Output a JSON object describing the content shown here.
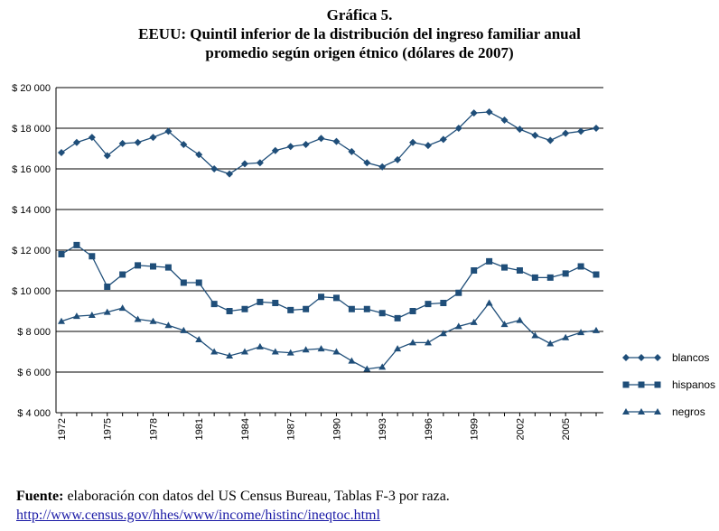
{
  "title_lines": [
    "Gráfica 5.",
    "EEUU: Quintil inferior de la distribución del ingreso familiar anual",
    "promedio según origen étnico (dólares de 2007)"
  ],
  "source": {
    "label": "Fuente:",
    "text": "elaboración con datos del US Census Bureau, Tablas F-3 por raza.",
    "url": "http://www.census.gov/hhes/www/income/histinc/ineqtoc.html"
  },
  "colors": {
    "series": "#1f4e79",
    "grid": "#000000"
  },
  "chart_data": {
    "type": "line",
    "title": "EEUU: Quintil inferior de la distribución del ingreso familiar anual promedio según origen étnico (dólares de 2007)",
    "xlabel": "",
    "ylabel": "",
    "x": [
      1972,
      1973,
      1974,
      1975,
      1976,
      1977,
      1978,
      1979,
      1980,
      1981,
      1982,
      1983,
      1984,
      1985,
      1986,
      1987,
      1988,
      1989,
      1990,
      1991,
      1992,
      1993,
      1994,
      1995,
      1996,
      1997,
      1998,
      1999,
      2000,
      2001,
      2002,
      2003,
      2004,
      2005,
      2006,
      2007
    ],
    "x_tick_labels": [
      "1972",
      "1975",
      "1978",
      "1981",
      "1984",
      "1987",
      "1990",
      "1993",
      "1996",
      "1999",
      "2002",
      "2005"
    ],
    "y_tick_labels": [
      "$ 4 000",
      "$ 6 000",
      "$ 8 000",
      "$ 10 000",
      "$ 12 000",
      "$ 14 000",
      "$ 16 000",
      "$ 18 000",
      "$ 20 000"
    ],
    "y_ticks": [
      4000,
      6000,
      8000,
      10000,
      12000,
      14000,
      16000,
      18000,
      20000
    ],
    "ylim": [
      4000,
      20000
    ],
    "grid": true,
    "legend_position": "right",
    "series": [
      {
        "name": "blancos",
        "marker": "diamond",
        "values": [
          16800,
          17300,
          17550,
          16650,
          17250,
          17300,
          17550,
          17850,
          17200,
          16700,
          16000,
          15750,
          16250,
          16300,
          16900,
          17100,
          17200,
          17500,
          17350,
          16850,
          16300,
          16100,
          16450,
          17300,
          17150,
          17450,
          18000,
          18750,
          18800,
          18400,
          17950,
          17650,
          17400,
          17750,
          17850,
          18000
        ]
      },
      {
        "name": "hispanos",
        "marker": "square",
        "values": [
          11800,
          12250,
          11700,
          10200,
          10800,
          11250,
          11200,
          11150,
          10400,
          10400,
          9350,
          9000,
          9100,
          9450,
          9400,
          9050,
          9100,
          9700,
          9650,
          9100,
          9100,
          8900,
          8650,
          9000,
          9350,
          9400,
          9900,
          11000,
          11450,
          11150,
          11000,
          10650,
          10650,
          10850,
          11200,
          10800
        ]
      },
      {
        "name": "negros",
        "marker": "triangle",
        "values": [
          8500,
          8750,
          8800,
          8950,
          9150,
          8600,
          8500,
          8300,
          8050,
          7600,
          7000,
          6800,
          7000,
          7250,
          7000,
          6950,
          7100,
          7150,
          7000,
          6550,
          6150,
          6250,
          7150,
          7450,
          7450,
          7900,
          8250,
          8450,
          9400,
          8350,
          8550,
          7800,
          7400,
          7700,
          7950,
          8050
        ]
      }
    ]
  }
}
